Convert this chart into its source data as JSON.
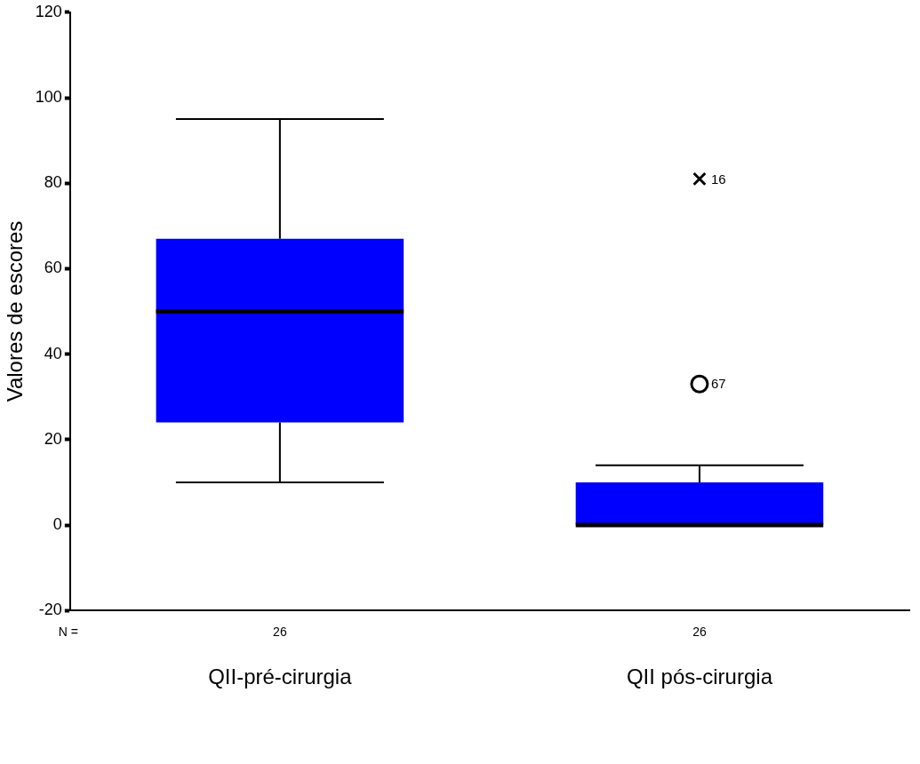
{
  "chart_data": {
    "type": "box",
    "ylabel": "Valores de escores",
    "categories": [
      "QII-pré-cirurgia",
      "QII pós-cirurgia"
    ],
    "color": "#0000ff",
    "boxes": [
      {
        "low": 10,
        "q1": 24,
        "median": 50,
        "q3": 67,
        "high": 95
      },
      {
        "low": 0,
        "q1": 0,
        "median": 0,
        "q3": 10,
        "high": 14,
        "outliers": [
          33,
          81
        ]
      }
    ],
    "ylim": [
      -20,
      120
    ],
    "yticks": [
      -20,
      0,
      20,
      40,
      60,
      80,
      100,
      120
    ],
    "grid": false,
    "legend": false,
    "annotations": [
      "N =",
      "26",
      "26",
      "16",
      "67"
    ]
  }
}
